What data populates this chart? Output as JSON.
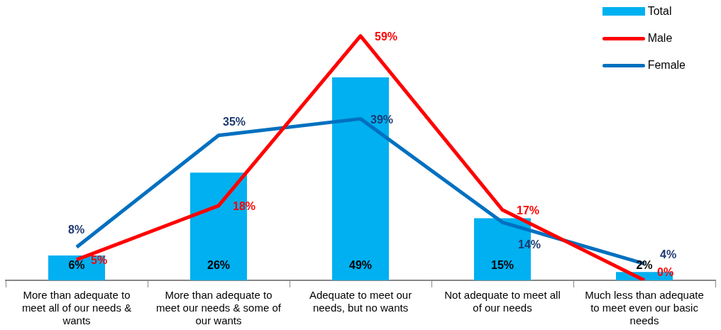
{
  "chart_data": {
    "type": "bar",
    "categories": [
      "More than adequate to meet all of our needs & wants",
      "More than adequate to meet our needs & some of our wants",
      "Adequate to meet our needs, but no wants",
      "Not adequate to meet all of our needs",
      "Much less than adequate to meet even our basic needs"
    ],
    "series": [
      {
        "name": "Total",
        "color": "#00b0f0",
        "values": [
          6,
          26,
          49,
          15,
          2
        ],
        "value_labels": [
          "6%",
          "26%",
          "49%",
          "15%",
          "2%"
        ]
      },
      {
        "name": "Male",
        "type": "line",
        "color": "#ff0000",
        "values": [
          5,
          18,
          59,
          17,
          0
        ],
        "value_labels": [
          "5%",
          "18%",
          "59%",
          "17%",
          "0%"
        ]
      },
      {
        "name": "Female",
        "type": "line",
        "color": "#0070c0",
        "values": [
          8,
          35,
          39,
          14,
          4
        ],
        "value_labels": [
          "8%",
          "35%",
          "39%",
          "14%",
          "4%"
        ]
      }
    ],
    "legend": "top right",
    "grid": false,
    "tick_labels": "x",
    "marker": "none"
  }
}
